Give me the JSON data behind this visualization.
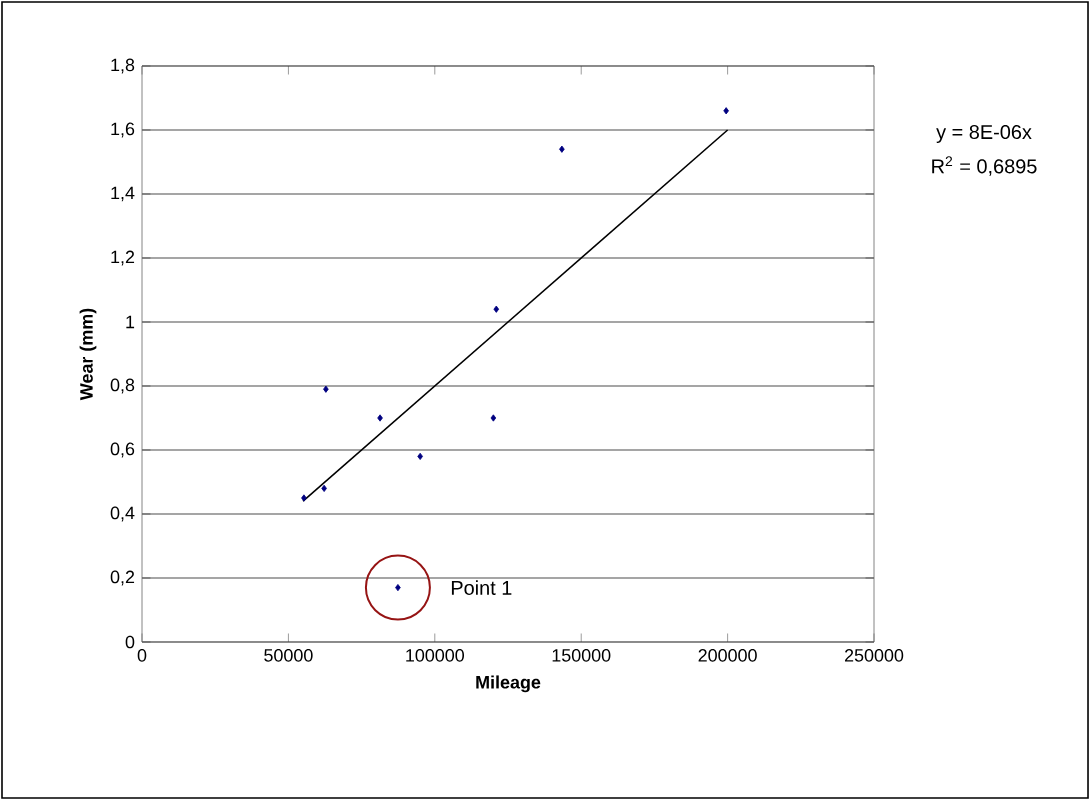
{
  "chart_data": {
    "type": "scatter",
    "xlabel": "Mileage",
    "ylabel": "Wear (mm)",
    "xlim": [
      0,
      250000
    ],
    "ylim": [
      0,
      1.8
    ],
    "xticks": [
      0,
      50000,
      100000,
      150000,
      200000,
      250000
    ],
    "yticks": [
      0,
      {
        "value": 0.2,
        "label": "0,2"
      },
      {
        "value": 0.4,
        "label": "0,4"
      },
      {
        "value": 0.6,
        "label": "0,6"
      },
      {
        "value": 0.8,
        "label": "0,8"
      },
      1,
      {
        "value": 1.2,
        "label": "1,2"
      },
      {
        "value": 1.4,
        "label": "1,4"
      },
      {
        "value": 1.6,
        "label": "1,6"
      },
      {
        "value": 1.8,
        "label": "1,8"
      }
    ],
    "grid": "y",
    "series": [
      {
        "color": "#000080",
        "marker": "diamond",
        "x": [
          55300,
          62200,
          62800,
          81300,
          87400,
          95000,
          120000,
          121000,
          143400,
          199500
        ],
        "values": [
          0.45,
          0.48,
          0.79,
          0.7,
          0.17,
          0.58,
          0.7,
          1.04,
          1.54,
          1.66
        ]
      },
      {
        "type": "line",
        "color": "#000000",
        "marker": "none",
        "x": [
          55000,
          200000
        ],
        "values": [
          0.44,
          1.6
        ]
      }
    ],
    "annotations": [
      "y = 8E-06x",
      "R$^{2}$ = 0,6895",
      {
        "text": "Point 1",
        "x": 87400,
        "y": 0.17
      }
    ]
  }
}
